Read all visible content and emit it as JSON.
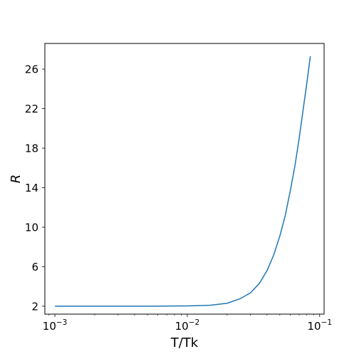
{
  "chart_data": {
    "type": "line",
    "title": "",
    "xlabel": "T/Tk",
    "ylabel": "R",
    "xscale": "log",
    "xlim": [
      0.00084,
      0.108
    ],
    "ylim": [
      1.2,
      28.6
    ],
    "grid": false,
    "line_color": "#1f77b4",
    "xticks": [
      {
        "value": 0.001,
        "mantissa": "10",
        "exponent": "−3"
      },
      {
        "value": 0.01,
        "mantissa": "10",
        "exponent": "−2"
      },
      {
        "value": 0.1,
        "mantissa": "10",
        "exponent": "−1"
      }
    ],
    "yticks": [
      2,
      6,
      10,
      14,
      18,
      22,
      26
    ],
    "series": [
      {
        "x": [
          0.001,
          0.002,
          0.005,
          0.01,
          0.015,
          0.02,
          0.025,
          0.03,
          0.035,
          0.04,
          0.045,
          0.05,
          0.055,
          0.06,
          0.065,
          0.07,
          0.075,
          0.08,
          0.085
        ],
        "y": [
          2.0,
          2.0,
          2.0,
          2.03,
          2.1,
          2.3,
          2.75,
          3.35,
          4.3,
          5.6,
          7.2,
          9.1,
          11.2,
          13.7,
          16.2,
          19.0,
          21.9,
          24.6,
          27.3
        ]
      }
    ]
  }
}
